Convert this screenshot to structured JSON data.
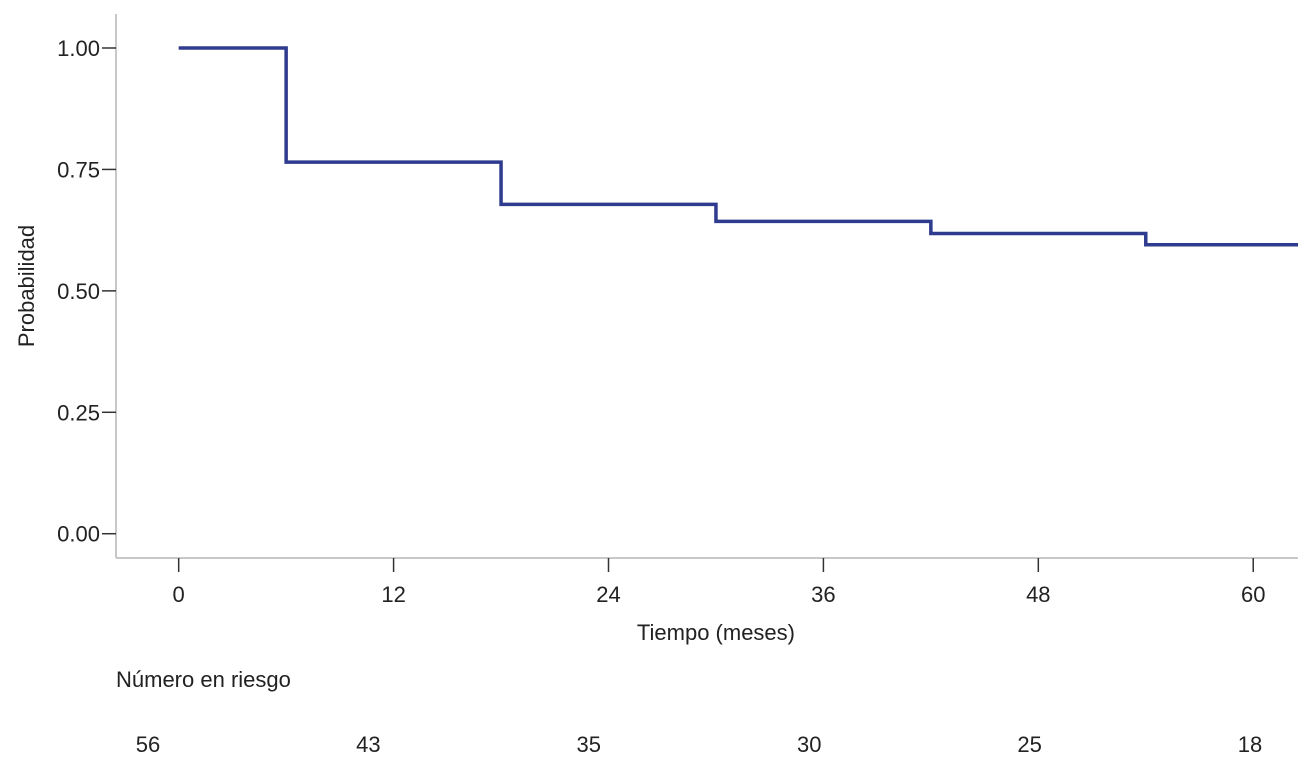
{
  "chart_data": {
    "type": "line",
    "chart_subtype": "kaplan-meier-step",
    "title": "",
    "xlabel": "Tiempo (meses)",
    "ylabel": "Probabilidad",
    "xlim": [
      -3.5,
      62.5
    ],
    "ylim": [
      -0.05,
      1.07
    ],
    "x_ticks": [
      0,
      12,
      24,
      36,
      48,
      60
    ],
    "x_tick_labels": [
      "0",
      "12",
      "24",
      "36",
      "48",
      "60"
    ],
    "y_ticks": [
      0.0,
      0.25,
      0.5,
      0.75,
      1.0
    ],
    "y_tick_labels": [
      "0.00",
      "0.25",
      "0.50",
      "0.75",
      "1.00"
    ],
    "grid": false,
    "legend": "none",
    "series": [
      {
        "color": "#2E3B8E",
        "step": "post",
        "x": [
          0,
          6,
          18,
          30,
          42,
          54,
          62.5
        ],
        "y": [
          1.0,
          0.765,
          0.678,
          0.643,
          0.618,
          0.595,
          0.595
        ]
      }
    ],
    "risk_table": {
      "title": "Número en riesgo",
      "times": [
        0,
        12,
        24,
        36,
        48,
        60
      ],
      "values": [
        "56",
        "43",
        "35",
        "30",
        "25",
        "18"
      ]
    }
  }
}
